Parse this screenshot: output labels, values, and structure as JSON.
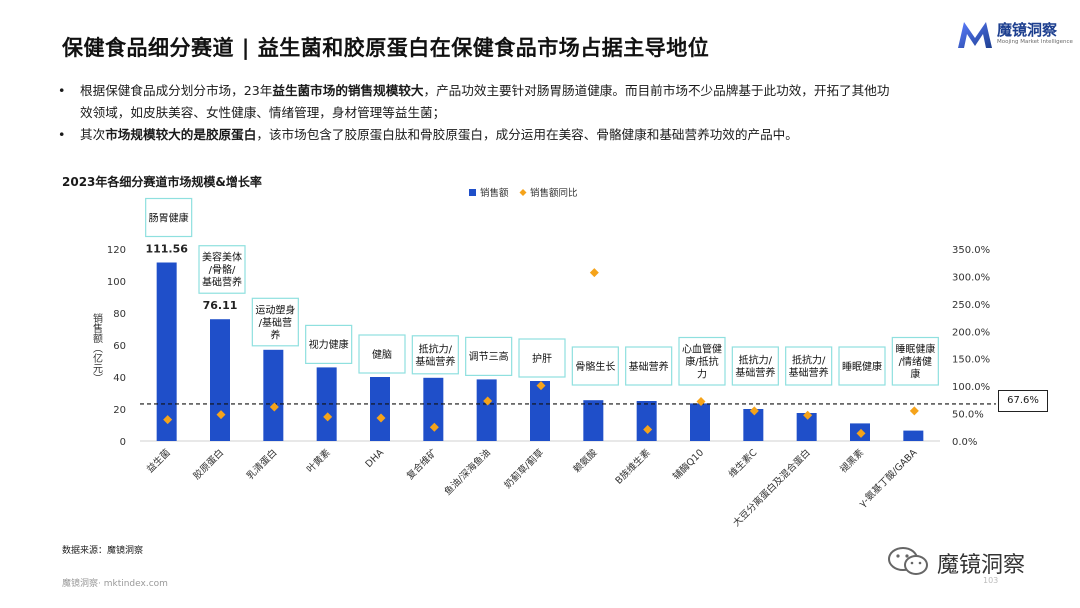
{
  "header": {
    "title": "保健食品细分赛道 | 益生菌和胶原蛋白在保健食品市场占据主导地位",
    "logo_name": "魔镜洞察",
    "logo_sub": "Moojing Market Intelligence"
  },
  "bullets": [
    {
      "parts": [
        {
          "text": "根据保健食品成分划分市场，23年",
          "bold": false
        },
        {
          "text": "益生菌市场的销售规模较大",
          "bold": true
        },
        {
          "text": "，产品功效主要针对肠胃肠道健康。而目前市场不少品牌基于此功效，开拓了其他功",
          "bold": false
        }
      ],
      "line2": "效领域，如皮肤美容、女性健康、情绪管理，身材管理等益生菌；"
    },
    {
      "parts": [
        {
          "text": "其次",
          "bold": false
        },
        {
          "text": "市场规模较大的是胶原蛋白",
          "bold": true
        },
        {
          "text": "，该市场包含了胶原蛋白肽和骨胶原蛋白，成分运用在美容、骨骼健康和基础营养功效的产品中。",
          "bold": false
        }
      ]
    }
  ],
  "bullet_symbol": "•",
  "chart_title": "2023年各细分赛道市场规模&增长率",
  "chart_data": {
    "type": "bar",
    "categories": [
      "益生菌",
      "胶原蛋白",
      "乳清蛋白",
      "叶黄素",
      "DHA",
      "复合维矿",
      "鱼油/深海鱼油",
      "奶蓟草/蓟草",
      "赖氨酸",
      "B族维生素",
      "辅酶Q10",
      "维生素C",
      "大豆分离蛋白及混合蛋白",
      "褪黑素",
      "γ-氨基丁酸/GABA"
    ],
    "series": [
      {
        "name": "销售额",
        "type": "bar",
        "axis": "left",
        "color": "#1f4fc9",
        "values": [
          111.56,
          76.11,
          57,
          46,
          40,
          39.5,
          38.5,
          37.5,
          25.5,
          25,
          23.5,
          20,
          17.5,
          11,
          6.5
        ]
      },
      {
        "name": "销售额同比",
        "type": "scatter",
        "axis": "right",
        "color": "#f5a31a",
        "values": [
          0.39,
          0.48,
          0.62,
          0.44,
          0.42,
          0.25,
          0.73,
          1.01,
          3.07,
          0.21,
          0.72,
          0.55,
          0.47,
          0.14,
          0.55
        ]
      }
    ],
    "bar_labels": [
      "111.56",
      "76.11"
    ],
    "annotations": [
      "肠胃健康",
      "美容美体/骨骼/基础营养",
      "运动塑身/基础营养",
      "视力健康",
      "健脑",
      "抵抗力/基础营养",
      "调节三高",
      "护肝",
      "骨骼生长",
      "基础营养",
      "心血管健康/抵抗力",
      "抵抗力/基础营养",
      "抵抗力/基础营养",
      "睡眠健康",
      "睡眠健康/情绪健康"
    ],
    "ylabel": "销售额（亿元）",
    "ylim": [
      0,
      120
    ],
    "yticks": [
      0,
      20,
      40,
      60,
      80,
      100,
      120
    ],
    "y2lim": [
      0,
      3.5
    ],
    "y2ticks": [
      "0.0%",
      "50.0%",
      "100.0%",
      "150.0%",
      "200.0%",
      "250.0%",
      "300.0%",
      "350.0%"
    ],
    "reference_line": {
      "value": 0.676,
      "label": "67.6%",
      "style": "dashed"
    },
    "legend_position": "top-right"
  },
  "source": "数据来源：魔镜洞察",
  "footer_left": "魔镜洞察· mktindex.com",
  "page_number": "103",
  "watermark_text": "魔镜洞察"
}
